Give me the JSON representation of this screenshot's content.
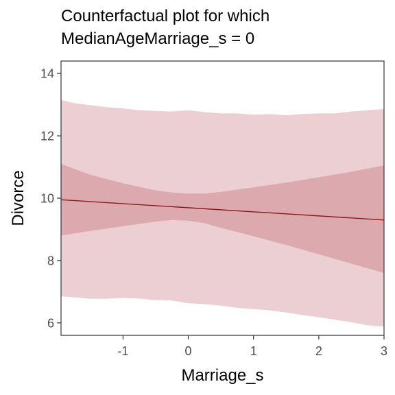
{
  "title_lines": [
    "Counterfactual plot for which",
    "MedianAgeMarriage_s = 0"
  ],
  "colors": {
    "outer_band": "#ebcfd2",
    "inner_band": "#dca9ae",
    "mean_line": "#8b1a1a",
    "axis": "#333333",
    "tick_text": "#4d4d4d"
  },
  "chart_data": {
    "type": "line",
    "title": "Counterfactual plot for which MedianAgeMarriage_s = 0",
    "xlabel": "Marriage_s",
    "ylabel": "Divorce",
    "xlim": [
      -1.95,
      3.0
    ],
    "ylim": [
      5.6,
      14.4
    ],
    "x_ticks": [
      -1,
      0,
      1,
      2,
      3
    ],
    "y_ticks": [
      6,
      8,
      10,
      12,
      14
    ],
    "grid": false,
    "series": [
      {
        "role": "prediction_interval",
        "x": [
          -1.95,
          -1.75,
          -1.5,
          -1.25,
          -1.0,
          -0.75,
          -0.5,
          -0.25,
          0.0,
          0.25,
          0.5,
          0.75,
          1.0,
          1.25,
          1.5,
          1.75,
          2.0,
          2.25,
          2.5,
          2.75,
          3.0
        ],
        "lower": [
          6.85,
          6.82,
          6.77,
          6.77,
          6.8,
          6.78,
          6.73,
          6.72,
          6.63,
          6.6,
          6.55,
          6.48,
          6.44,
          6.4,
          6.33,
          6.25,
          6.18,
          6.1,
          6.02,
          5.92,
          5.88
        ],
        "upper": [
          13.15,
          13.05,
          12.98,
          12.92,
          12.88,
          12.82,
          12.8,
          12.78,
          12.82,
          12.76,
          12.72,
          12.72,
          12.68,
          12.7,
          12.66,
          12.7,
          12.72,
          12.72,
          12.78,
          12.82,
          12.86
        ]
      },
      {
        "role": "mean_interval",
        "x": [
          -1.95,
          -1.5,
          -1.0,
          -0.5,
          -0.25,
          0.0,
          0.25,
          0.5,
          1.0,
          1.5,
          2.0,
          2.5,
          3.0
        ],
        "lower": [
          8.8,
          8.95,
          9.1,
          9.25,
          9.3,
          9.28,
          9.2,
          9.05,
          8.78,
          8.5,
          8.2,
          7.9,
          7.6
        ],
        "upper": [
          11.1,
          10.75,
          10.48,
          10.25,
          10.18,
          10.15,
          10.15,
          10.2,
          10.35,
          10.5,
          10.67,
          10.85,
          11.05
        ]
      },
      {
        "role": "mean",
        "x": [
          -1.95,
          3.0
        ],
        "y": [
          9.95,
          9.3
        ]
      }
    ]
  }
}
